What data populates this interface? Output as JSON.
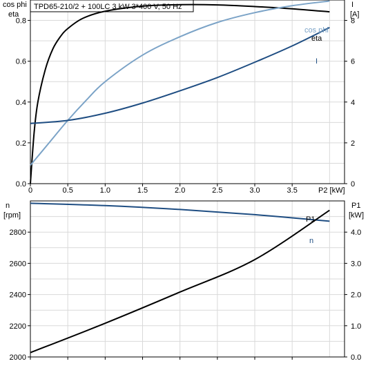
{
  "chart_data": [
    {
      "type": "line",
      "title": "TPD65-210/2 + 100LC   3 kW   3*400 V, 50 Hz",
      "xlabel": "P2 [kW]",
      "x_ticks": [
        "0",
        "0.5",
        "1.0",
        "1.5",
        "2.0",
        "2.5",
        "3.0",
        "3.5"
      ],
      "xlim": [
        0,
        4.2
      ],
      "left_axis": {
        "label_lines": [
          "cos phi",
          "eta"
        ],
        "ylim": [
          0,
          0.9
        ],
        "ticks": [
          "0.0",
          "0.2",
          "0.4",
          "0.6",
          "0.8"
        ]
      },
      "right_axis": {
        "label_lines": [
          "I",
          "[A]"
        ],
        "ylim": [
          0,
          9
        ],
        "ticks": [
          "0",
          "2",
          "4",
          "6",
          "8"
        ]
      },
      "grid": true,
      "series": [
        {
          "name": "eta",
          "axis": "left",
          "color": "#000000",
          "x": [
            0,
            0.05,
            0.1,
            0.2,
            0.3,
            0.4,
            0.5,
            0.7,
            1.0,
            1.5,
            2.0,
            2.5,
            3.0,
            3.5,
            4.0
          ],
          "values": [
            0.0,
            0.25,
            0.4,
            0.56,
            0.66,
            0.72,
            0.76,
            0.81,
            0.845,
            0.87,
            0.877,
            0.876,
            0.868,
            0.857,
            0.842
          ]
        },
        {
          "name": "cos phi",
          "axis": "left",
          "color": "#7ba3c7",
          "x": [
            0,
            0.25,
            0.5,
            0.75,
            1.0,
            1.5,
            2.0,
            2.5,
            3.0,
            3.5,
            4.0
          ],
          "values": [
            0.09,
            0.2,
            0.31,
            0.41,
            0.5,
            0.63,
            0.72,
            0.79,
            0.838,
            0.872,
            0.895
          ]
        },
        {
          "name": "I",
          "axis": "right",
          "color": "#1e4d82",
          "x": [
            0,
            0.5,
            1.0,
            1.5,
            2.0,
            2.5,
            3.0,
            3.5,
            4.0
          ],
          "values": [
            2.95,
            3.1,
            3.45,
            3.95,
            4.55,
            5.2,
            5.95,
            6.75,
            7.65
          ]
        }
      ]
    },
    {
      "type": "line",
      "xlim": [
        0,
        4.2
      ],
      "left_axis": {
        "label_lines": [
          "n",
          "[rpm]"
        ],
        "ylim": [
          2000,
          3000
        ],
        "ticks": [
          "2000",
          "2200",
          "2400",
          "2600",
          "2800"
        ]
      },
      "right_axis": {
        "label_lines": [
          "P1",
          "[kW]"
        ],
        "ylim": [
          0,
          5
        ],
        "ticks": [
          "0.0",
          "1.0",
          "2.0",
          "3.0",
          "4.0"
        ]
      },
      "grid": true,
      "series": [
        {
          "name": "n",
          "axis": "left",
          "color": "#1e4d82",
          "x": [
            0,
            1.0,
            2.0,
            3.0,
            4.0
          ],
          "values": [
            2985,
            2970,
            2945,
            2912,
            2870
          ]
        },
        {
          "name": "P1",
          "axis": "right",
          "color": "#000000",
          "x": [
            0,
            1.0,
            2.0,
            3.0,
            4.0
          ],
          "values": [
            0.14,
            1.08,
            2.08,
            3.12,
            4.7
          ]
        }
      ]
    }
  ]
}
